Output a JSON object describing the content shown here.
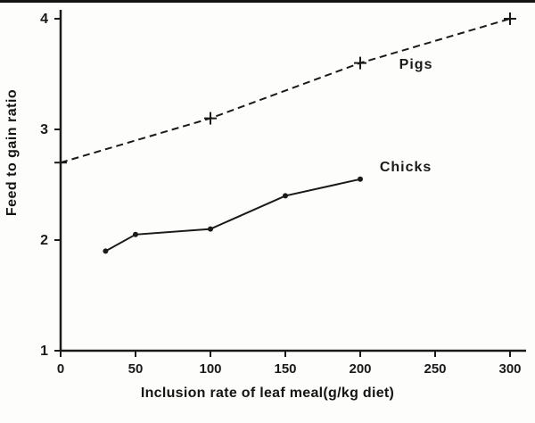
{
  "colors": {
    "ink": "#1a1a1a",
    "background": "#fdfdfc"
  },
  "chart_data": {
    "type": "line",
    "title": "",
    "xlabel": "Inclusion rate of leaf meal(g/kg diet)",
    "ylabel": "Feed to gain ratio",
    "xlim": [
      0,
      300
    ],
    "ylim": [
      1,
      4
    ],
    "x_ticks": [
      0,
      50,
      100,
      150,
      200,
      250,
      300
    ],
    "y_ticks": [
      1,
      2,
      3,
      4
    ],
    "grid": false,
    "legend_position": "inline-annotations",
    "series": [
      {
        "name": "Pigs",
        "style": "dashed",
        "marker": "plus",
        "x": [
          0,
          100,
          200,
          300
        ],
        "y": [
          2.7,
          3.1,
          3.6,
          4.0
        ],
        "label_pos": {
          "x": 226,
          "y": 3.55
        }
      },
      {
        "name": "Chicks",
        "style": "solid",
        "marker": "dot",
        "x": [
          30,
          50,
          100,
          150,
          200
        ],
        "y": [
          1.9,
          2.05,
          2.1,
          2.4,
          2.55
        ],
        "label_pos": {
          "x": 213,
          "y": 2.62
        }
      }
    ]
  }
}
